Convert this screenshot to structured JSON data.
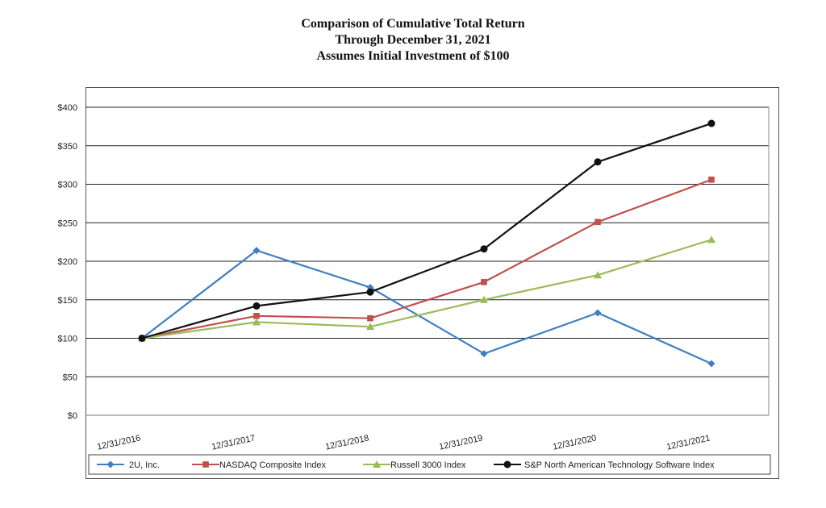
{
  "title_lines": [
    "Comparison of Cumulative Total Return",
    "Through December 31, 2021",
    "Assumes Initial Investment of $100"
  ],
  "chart_data": {
    "type": "line",
    "title": "Comparison of Cumulative Total Return",
    "categories": [
      "12/31/2016",
      "12/31/2017",
      "12/31/2018",
      "12/31/2019",
      "12/31/2020",
      "12/31/2021"
    ],
    "ylim": [
      0,
      400
    ],
    "yticks": [
      0,
      50,
      100,
      150,
      200,
      250,
      300,
      350,
      400
    ],
    "ytick_labels": [
      "$0",
      "$50",
      "$100",
      "$150",
      "$200",
      "$250",
      "$300",
      "$350",
      "$400"
    ],
    "grid": true,
    "legend_position": "bottom",
    "series": [
      {
        "name": "2U, Inc.",
        "color": "#3f7fc0",
        "marker": "diamond",
        "values": [
          100,
          214,
          166,
          80,
          133,
          67
        ]
      },
      {
        "name": "NASDAQ Composite Index",
        "color": "#c0504d",
        "marker": "square",
        "values": [
          100,
          129,
          126,
          173,
          251,
          306
        ]
      },
      {
        "name": "Russell 3000 Index",
        "color": "#9bbb59",
        "marker": "triangle",
        "values": [
          100,
          121,
          115,
          150,
          182,
          228
        ]
      },
      {
        "name": "S&P North American Technology Software Index",
        "color": "#111111",
        "marker": "circle",
        "values": [
          100,
          142,
          160,
          216,
          329,
          379
        ]
      }
    ]
  }
}
